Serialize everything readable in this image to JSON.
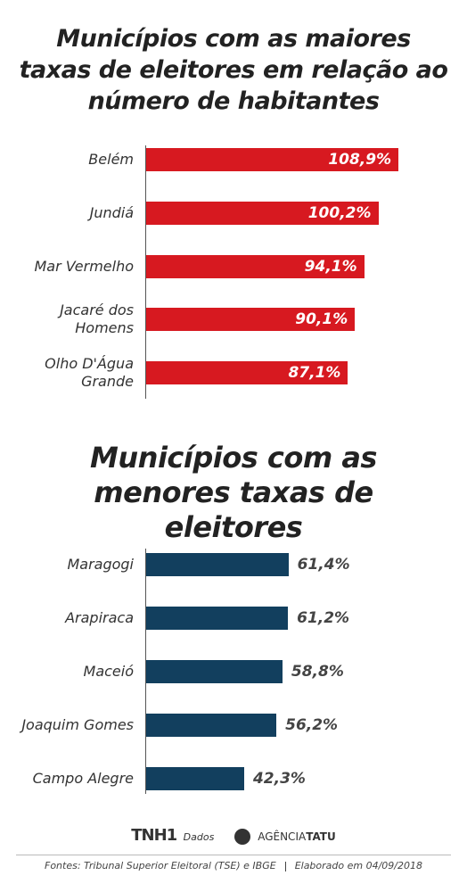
{
  "chart_data": [
    {
      "type": "bar",
      "orientation": "horizontal",
      "title": "Municípios com as maiores taxas de eleitores em relação ao número de habitantes",
      "categories": [
        "Belém",
        "Jundiá",
        "Mar Vermelho",
        "Jacaré dos Homens",
        "Olho D'Água Grande"
      ],
      "values": [
        108.9,
        100.2,
        94.1,
        90.1,
        87.1
      ],
      "value_labels": [
        "108,9%",
        "100,2%",
        "94,1%",
        "90,1%",
        "87,1%"
      ],
      "color": "#d71920",
      "label_position": "inside"
    },
    {
      "type": "bar",
      "orientation": "horizontal",
      "title": "Municípios com as menores taxas de eleitores",
      "categories": [
        "Maragogi",
        "Arapiraca",
        "Maceió",
        "Joaquim Gomes",
        "Campo Alegre"
      ],
      "values": [
        61.4,
        61.2,
        58.8,
        56.2,
        42.3
      ],
      "value_labels": [
        "61,4%",
        "61,2%",
        "58,8%",
        "56,2%",
        "42,3%"
      ],
      "color": "#123f5e",
      "label_position": "outside"
    }
  ],
  "footer": {
    "logos": [
      "TNH1",
      "Dados",
      "AGÊNCIA",
      "TATU"
    ],
    "sources": "Fontes:  Tribunal Superior Eleitoral (TSE)  e IBGE",
    "credit": "Elaborado em 04/09/2018"
  }
}
